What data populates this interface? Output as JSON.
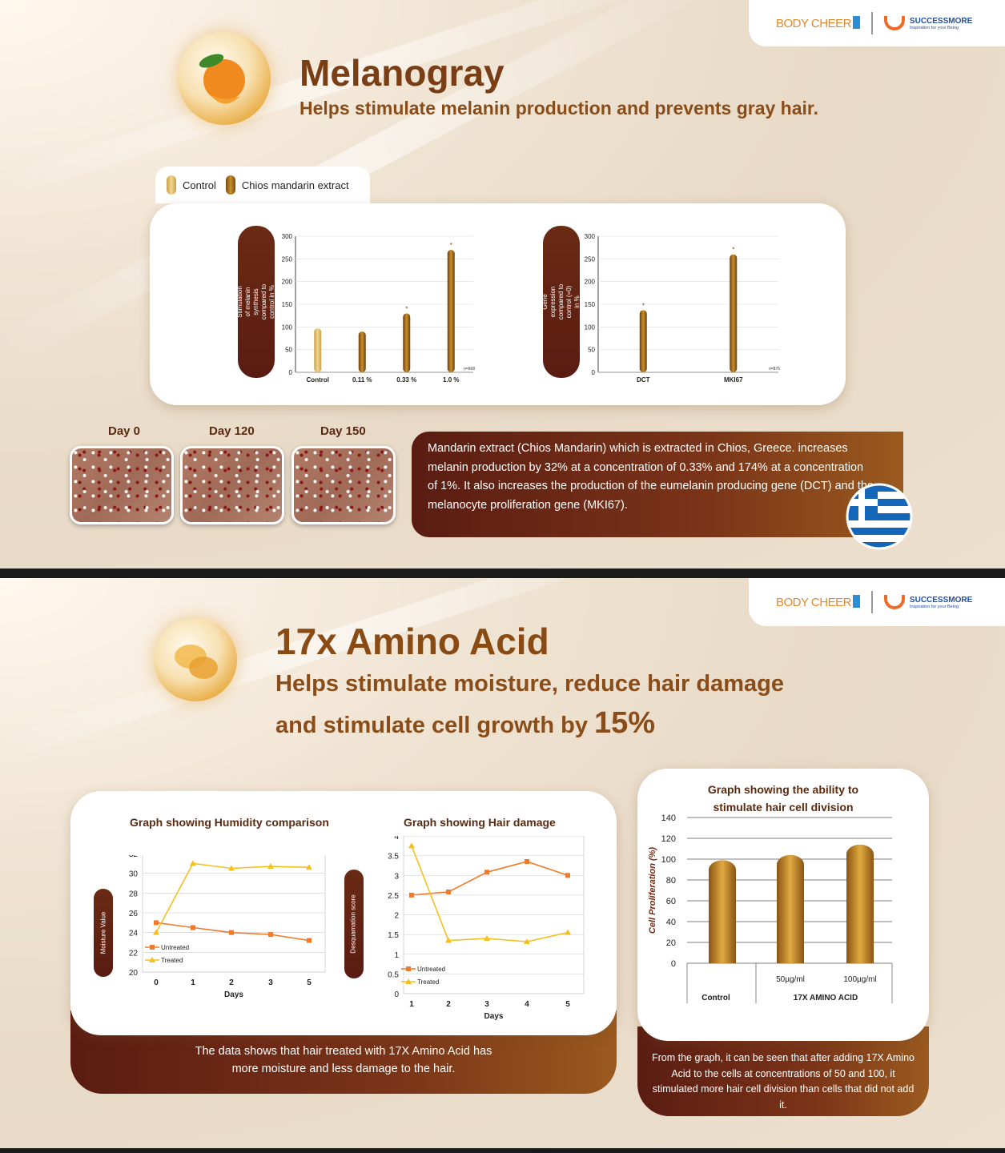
{
  "brand": {
    "body_cheer": "BODY CHEER",
    "successmore": "SUCCESSMORE",
    "successmore_tag": "Inspiration for your Being"
  },
  "panel1": {
    "title": "Melanogray",
    "subtitle": "Helps stimulate melanin production and prevents gray hair.",
    "legend": {
      "control": "Control",
      "extract": "Chios mandarin extract"
    },
    "chart1_ylabel": "Stimulation of melanin synthesis compared to control in %",
    "chart2_ylabel": "Gene expression compared to control (=0) in %",
    "days": [
      "Day 0",
      "Day 120",
      "Day 150"
    ],
    "description": "Mandarin extract (Chios Mandarin) which is extracted in Chios, Greece. increases melanin production by 32% at a concentration of 0.33% and 174% at a concentration of 1%. It also increases the production of the eumelanin producing gene (DCT) and the melanocyte proliferation gene (MKI67)."
  },
  "panel2": {
    "title": "17x Amino Acid",
    "subtitle_line1": "Helps stimulate moisture, reduce hair damage",
    "subtitle_line2": "and stimulate cell growth by",
    "subtitle_big": "15%",
    "humidity_title": "Graph showing Humidity comparison",
    "humidity_ylabel": "Moisture Value",
    "damage_title": "Graph showing Hair damage",
    "damage_ylabel": "Desquamation score",
    "days_label": "Days",
    "left_note": "The data shows that hair treated with 17X Amino Acid has more moisture and less damage to the hair.",
    "cell_title_1": "Graph showing the ability to",
    "cell_title_2": "stimulate hair cell division",
    "cell_ylabel": "Cell Proliferation (%)",
    "cell_group": "17X AMINO ACID",
    "right_note": "From the graph, it can be seen that after adding 17X Amino Acid to the cells at concentrations of 50 and 100, it stimulated more hair cell division than cells that did not add it."
  },
  "colors": {
    "brown": "#7a3e16",
    "gold": "#c8902a",
    "light_gold": "#e9c97a",
    "orange": "#f07a2a",
    "yellow": "#f4c020"
  },
  "chart_data": [
    {
      "type": "bar",
      "categories": [
        "Control",
        "0.11 %",
        "0.33 %",
        "1.0 %"
      ],
      "values": [
        97,
        90,
        130,
        270
      ],
      "ylim": [
        0,
        300
      ],
      "yticks": [
        0,
        50,
        100,
        150,
        200,
        250,
        300
      ],
      "significant": [
        false,
        false,
        true,
        true
      ],
      "note": "n=668"
    },
    {
      "type": "bar",
      "categories": [
        "DCT",
        "MKI67"
      ],
      "values": [
        137,
        260
      ],
      "ylim": [
        0,
        300
      ],
      "yticks": [
        0,
        50,
        100,
        150,
        200,
        250,
        300
      ],
      "significant": [
        true,
        true
      ],
      "note": "n=876"
    },
    {
      "type": "line",
      "title": "Graph showing Humidity comparison",
      "xlabel": "Days",
      "ylabel": "Moisture Value",
      "x": [
        0,
        1,
        2,
        3,
        5
      ],
      "ylim": [
        20,
        32
      ],
      "yticks": [
        20,
        22,
        24,
        26,
        28,
        30,
        32
      ],
      "series": [
        {
          "name": "Untreated",
          "values": [
            25,
            24.5,
            24,
            23.8,
            23.2
          ]
        },
        {
          "name": "Treated",
          "values": [
            24,
            31,
            30.5,
            30.7,
            30.6
          ]
        }
      ]
    },
    {
      "type": "line",
      "title": "Graph showing Hair damage",
      "xlabel": "Days",
      "ylabel": "Desquamation score",
      "x": [
        1,
        2,
        3,
        4,
        5
      ],
      "ylim": [
        0,
        4
      ],
      "yticks": [
        0,
        0.5,
        1,
        1.5,
        2,
        2.5,
        3,
        3.5,
        4
      ],
      "series": [
        {
          "name": "Untreated",
          "values": [
            2.5,
            2.58,
            3.08,
            3.35,
            3.0
          ]
        },
        {
          "name": "Treated",
          "values": [
            3.75,
            1.35,
            1.4,
            1.32,
            1.55
          ]
        }
      ]
    },
    {
      "type": "bar",
      "title": "Graph showing the ability to stimulate hair cell division",
      "ylabel": "Cell Proliferation (%)",
      "categories": [
        "Control",
        "50µg/ml",
        "100µg/ml"
      ],
      "values": [
        99,
        104,
        114
      ],
      "ylim": [
        0,
        140
      ],
      "yticks": [
        0,
        20,
        40,
        60,
        80,
        100,
        120,
        140
      ]
    }
  ]
}
